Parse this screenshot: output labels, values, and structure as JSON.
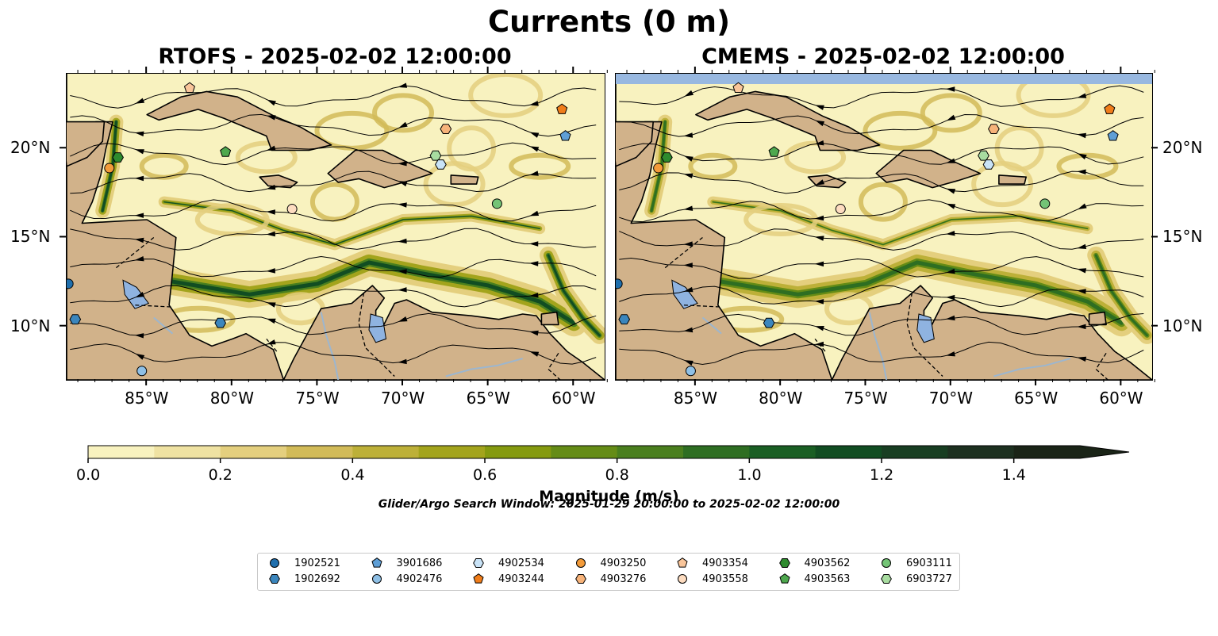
{
  "figure": {
    "title": "Currents (0 m)",
    "panels": [
      {
        "title": "RTOFS - 2025-02-02 12:00:00"
      },
      {
        "title": "CMEMS - 2025-02-02 12:00:00"
      }
    ],
    "lon_ticks": [
      "85°W",
      "80°W",
      "75°W",
      "70°W",
      "65°W",
      "60°W"
    ],
    "lat_ticks": [
      "20°N",
      "15°N",
      "10°N"
    ],
    "colorbar": {
      "label": "Magnitude (m/s)",
      "ticks": [
        "0.0",
        "0.2",
        "0.4",
        "0.6",
        "0.8",
        "1.0",
        "1.2",
        "1.4"
      ],
      "range": [
        0,
        1.5
      ],
      "extend": "max",
      "colors": [
        "#f8f2bf",
        "#efe2a2",
        "#e4cf7e",
        "#d2bb58",
        "#bdb038",
        "#a3a41c",
        "#859a0f",
        "#658c16",
        "#4a7f1e",
        "#2e6e22",
        "#1a5f24",
        "#114d22",
        "#183e22",
        "#1d3020",
        "#1a2417"
      ]
    },
    "subtitle": "Glider/Argo Search Window: 2025-01-29 20:00:00 to 2025-02-02 12:00:00",
    "legend": [
      {
        "label": "1902521",
        "marker": "circle",
        "color": "#1f6fad"
      },
      {
        "label": "1902692",
        "marker": "hexagon",
        "color": "#3b86bd"
      },
      {
        "label": "3901686",
        "marker": "pentagon",
        "color": "#5f9fd6"
      },
      {
        "label": "4902476",
        "marker": "circle",
        "color": "#8fc0e6"
      },
      {
        "label": "4902534",
        "marker": "hexagon",
        "color": "#c9e3f7"
      },
      {
        "label": "4903244",
        "marker": "pentagon",
        "color": "#f07d1a"
      },
      {
        "label": "4903250",
        "marker": "circle",
        "color": "#f39b3a"
      },
      {
        "label": "4903276",
        "marker": "hexagon",
        "color": "#f7b37a"
      },
      {
        "label": "4903354",
        "marker": "pentagon",
        "color": "#f9c59a"
      },
      {
        "label": "4903558",
        "marker": "circle",
        "color": "#fddcc0"
      },
      {
        "label": "4903562",
        "marker": "hexagon",
        "color": "#2e8b2e"
      },
      {
        "label": "4903563",
        "marker": "pentagon",
        "color": "#4ea84e"
      },
      {
        "label": "6903111",
        "marker": "circle",
        "color": "#74c476"
      },
      {
        "label": "6903727",
        "marker": "hexagon",
        "color": "#a8dca0"
      }
    ],
    "map": {
      "lon_range": [
        -89.7,
        -58.2
      ],
      "lat_range": [
        7,
        24.2
      ],
      "land_color": "#d1b28a",
      "water_color": "#8fb3e0"
    }
  }
}
